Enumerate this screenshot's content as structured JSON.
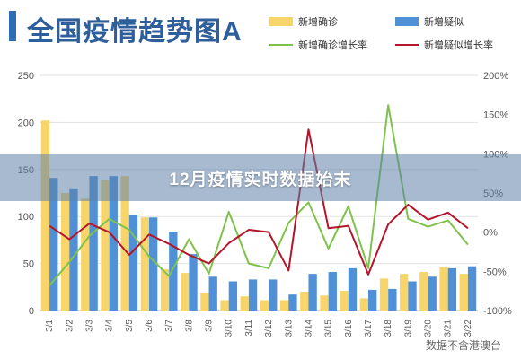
{
  "banner": {
    "text": "12月疫情实时数据始末"
  },
  "source_note": "数据不含港澳台",
  "colors": {
    "confirmed_bar": "#f7d56b",
    "suspected_bar": "#4f90d6",
    "confirmed_growth_line": "#7fc24b",
    "suspected_growth_line": "#b3162b",
    "title": "#2f5f9a",
    "grid": "#e2e2e2"
  },
  "chart_data": {
    "type": "bar",
    "title": "全国疫情趋势图A",
    "categories": [
      "3/1",
      "3/2",
      "3/3",
      "3/4",
      "3/5",
      "3/6",
      "3/7",
      "3/8",
      "3/9",
      "3/10",
      "3/11",
      "3/12",
      "3/13",
      "3/14",
      "3/15",
      "3/16",
      "3/17",
      "3/18",
      "3/19",
      "3/20",
      "3/21",
      "3/22"
    ],
    "series": [
      {
        "name": "新增确诊",
        "kind": "bar",
        "axis": "left",
        "color": "#f7d56b",
        "values": [
          202,
          125,
          119,
          139,
          143,
          99,
          44,
          40,
          19,
          11,
          15,
          11,
          11,
          20,
          16,
          21,
          13,
          34,
          39,
          41,
          46,
          39
        ]
      },
      {
        "name": "新增疑似",
        "kind": "bar",
        "axis": "left",
        "color": "#4f90d6",
        "values": [
          141,
          129,
          143,
          143,
          102,
          99,
          84,
          60,
          36,
          31,
          33,
          33,
          17,
          39,
          41,
          45,
          22,
          23,
          31,
          36,
          45,
          47
        ]
      },
      {
        "name": "新增确诊增长率",
        "kind": "line",
        "axis": "right",
        "color": "#7fc24b",
        "values": [
          -68,
          -38,
          -5,
          17,
          3,
          -31,
          -56,
          -9,
          -53,
          26,
          -40,
          -46,
          12,
          38,
          -21,
          33,
          -46,
          162,
          17,
          7,
          15,
          -16
        ]
      },
      {
        "name": "新增疑似增长率",
        "kind": "line",
        "axis": "right",
        "color": "#b3162b",
        "values": [
          8,
          -9,
          11,
          0,
          -29,
          -3,
          -15,
          -29,
          -40,
          -14,
          3,
          0,
          -49,
          131,
          5,
          8,
          -54,
          10,
          35,
          16,
          25,
          5
        ]
      }
    ],
    "yleft": {
      "ticks": [
        0,
        50,
        100,
        150,
        200,
        250
      ],
      "ylim": [
        0,
        250
      ]
    },
    "yright": {
      "ticks": [
        "-100%",
        "-50%",
        "0%",
        "50%",
        "100%",
        "150%",
        "200%"
      ],
      "ylim": [
        -100,
        200
      ]
    },
    "grid": true,
    "legend": "top-right"
  }
}
